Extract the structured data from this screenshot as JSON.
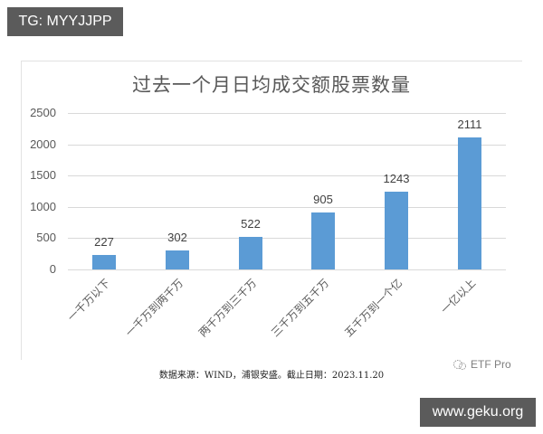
{
  "badges": {
    "top_left": "TG: MYYJJPP",
    "bottom_right": "www.geku.org"
  },
  "watermark": {
    "icon": "wechat-logo-icon",
    "text": "ETF Pro"
  },
  "source_note": "数据来源：WIND，浦银安盛。截止日期：2023.11.20",
  "chart_data": {
    "type": "bar",
    "title": "过去一个月日均成交额股票数量",
    "xlabel": "",
    "ylabel": "",
    "categories": [
      "一千万以下",
      "一千万到两千万",
      "两千万到三千万",
      "三千万到五千万",
      "五千万到一个亿",
      "一亿以上"
    ],
    "values": [
      227,
      302,
      522,
      905,
      1243,
      2111
    ],
    "value_labels": [
      "227",
      "302",
      "522",
      "905",
      "1243",
      "2111"
    ],
    "yticks": [
      "0",
      "500",
      "1000",
      "1500",
      "2000",
      "2500"
    ],
    "ylim": [
      0,
      2500
    ],
    "grid": true,
    "legend": null,
    "bar_color": "#5b9bd5"
  }
}
